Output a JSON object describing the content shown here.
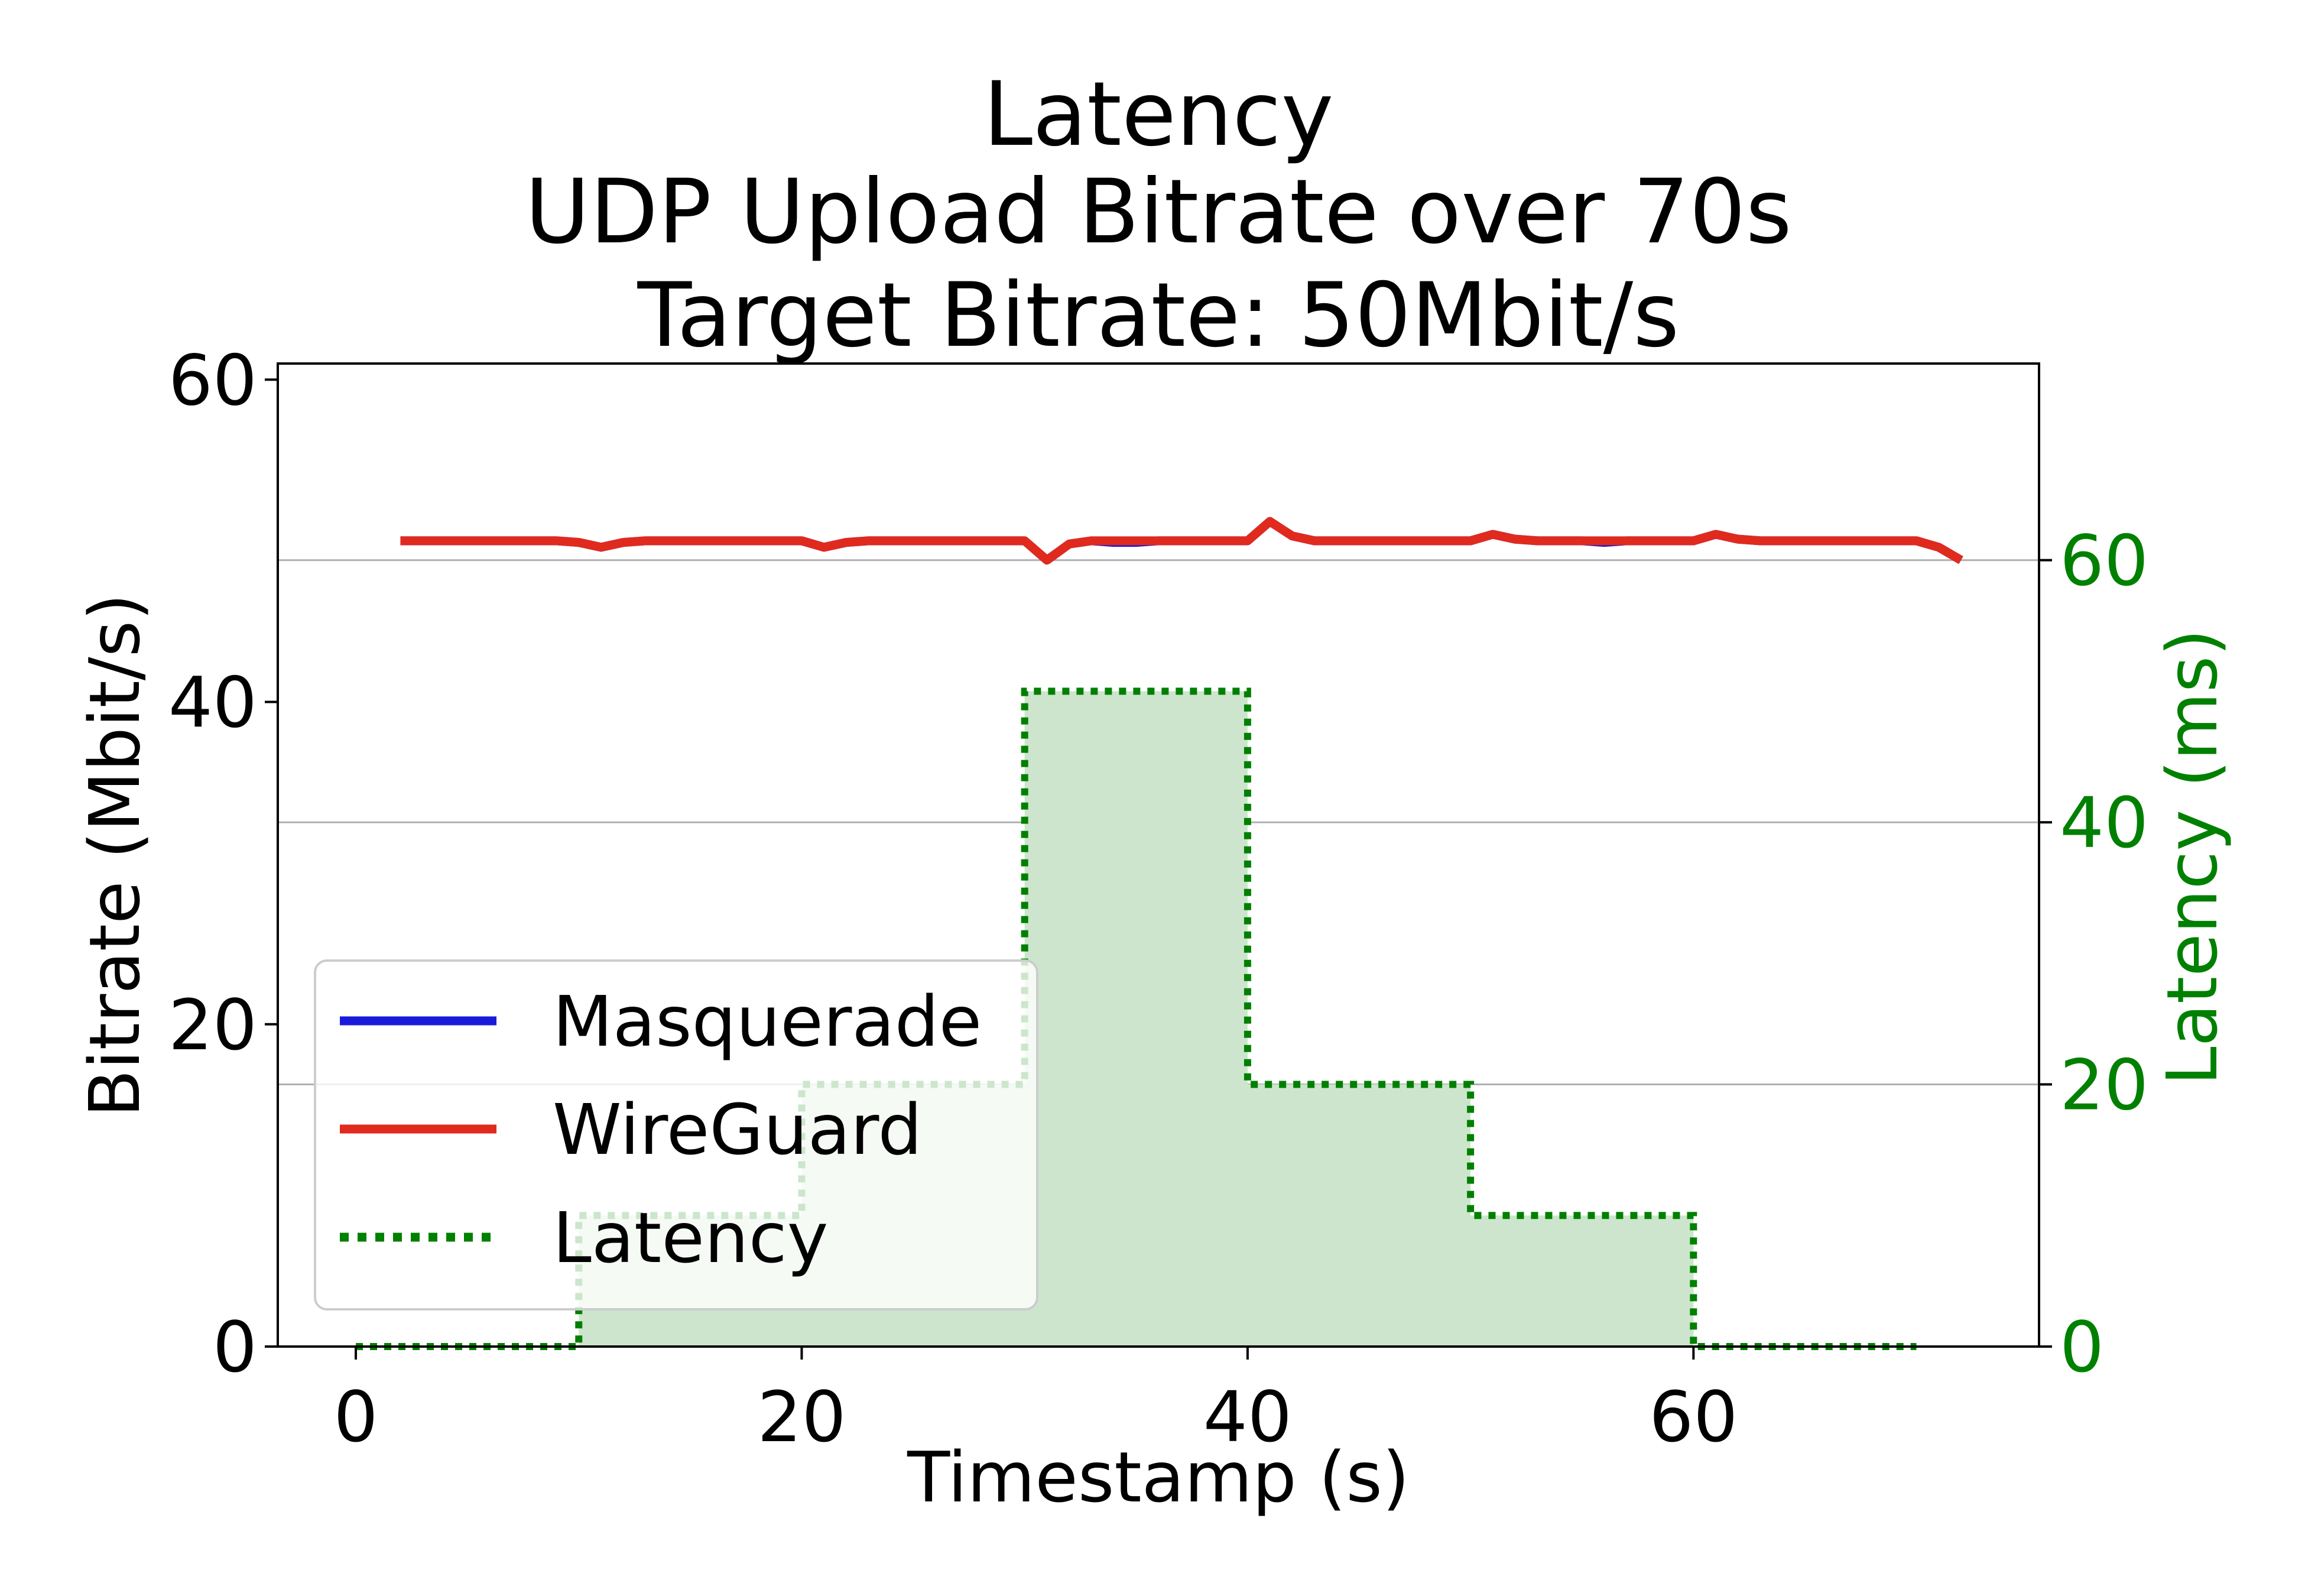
{
  "chart_data": {
    "type": "line",
    "title_lines": [
      "Latency",
      "UDP Upload Bitrate over 70s",
      "Target Bitrate: 50Mbit/s"
    ],
    "xlabel": "Timestamp (s)",
    "ylabel": "Bitrate (Mbit/s)",
    "ylabel_right": "Latency (ms)",
    "xlim": [
      -3.5,
      75.5
    ],
    "ylim": [
      0,
      61
    ],
    "ylim_right": [
      0,
      75
    ],
    "xticks": [
      0,
      20,
      40,
      60
    ],
    "yticks": [
      0,
      20,
      40,
      60
    ],
    "yticks_right": [
      0,
      20,
      40,
      60
    ],
    "grid": "horizontal lines at right-axis ticks",
    "legend_position": "lower-left",
    "series": [
      {
        "name": "Masquerade",
        "axis": "left",
        "color": "#1a1adb",
        "style": "solid",
        "x": [
          2,
          3,
          4,
          5,
          6,
          7,
          8,
          9,
          10,
          11,
          12,
          13,
          14,
          15,
          16,
          17,
          18,
          19,
          20,
          21,
          22,
          23,
          24,
          25,
          26,
          27,
          28,
          29,
          30,
          31,
          32,
          33,
          34,
          35,
          36,
          37,
          38,
          39,
          40,
          41,
          42,
          43,
          44,
          45,
          46,
          47,
          48,
          49,
          50,
          51,
          52,
          53,
          54,
          55,
          56,
          57,
          58,
          59,
          60,
          61,
          62,
          63,
          64,
          65,
          66,
          67,
          68,
          69,
          70,
          71,
          72
        ],
        "y": [
          50,
          50,
          50,
          50,
          50,
          50,
          50,
          50,
          49.9,
          49.6,
          49.9,
          50,
          50,
          50,
          50,
          50,
          50,
          50,
          50,
          49.6,
          49.9,
          50,
          50,
          50,
          50,
          50,
          50,
          50,
          50,
          48.8,
          49.8,
          50,
          49.9,
          49.9,
          50,
          50,
          50,
          50,
          50,
          51.2,
          50.3,
          50,
          50,
          50,
          50,
          50,
          50,
          50,
          50,
          50.4,
          50.1,
          50,
          50,
          50,
          49.9,
          50,
          50,
          50,
          50,
          50.4,
          50.1,
          50,
          50,
          50,
          50,
          50,
          50,
          50,
          50,
          49.6,
          48.8
        ]
      },
      {
        "name": "WireGuard",
        "axis": "left",
        "color": "#e02a1e",
        "style": "solid",
        "x": [
          2,
          3,
          4,
          5,
          6,
          7,
          8,
          9,
          10,
          11,
          12,
          13,
          14,
          15,
          16,
          17,
          18,
          19,
          20,
          21,
          22,
          23,
          24,
          25,
          26,
          27,
          28,
          29,
          30,
          31,
          32,
          33,
          34,
          35,
          36,
          37,
          38,
          39,
          40,
          41,
          42,
          43,
          44,
          45,
          46,
          47,
          48,
          49,
          50,
          51,
          52,
          53,
          54,
          55,
          56,
          57,
          58,
          59,
          60,
          61,
          62,
          63,
          64,
          65,
          66,
          67,
          68,
          69,
          70,
          71,
          72
        ],
        "y": [
          50,
          50,
          50,
          50,
          50,
          50,
          50,
          50,
          49.9,
          49.6,
          49.9,
          50,
          50,
          50,
          50,
          50,
          50,
          50,
          50,
          49.6,
          49.9,
          50,
          50,
          50,
          50,
          50,
          50,
          50,
          50,
          48.8,
          49.8,
          50,
          50,
          50,
          50,
          50,
          50,
          50,
          50,
          51.2,
          50.3,
          50,
          50,
          50,
          50,
          50,
          50,
          50,
          50,
          50.4,
          50.1,
          50,
          50,
          50,
          50,
          50,
          50,
          50,
          50,
          50.4,
          50.1,
          50,
          50,
          50,
          50,
          50,
          50,
          50,
          50,
          49.6,
          48.8
        ]
      },
      {
        "name": "Latency",
        "axis": "right",
        "color": "#008000",
        "style": "dotted-step-with-fill",
        "x": [
          0,
          10,
          20,
          30,
          40,
          50,
          60,
          70
        ],
        "y": [
          0,
          10,
          20,
          50,
          20,
          10,
          0,
          0
        ]
      }
    ]
  }
}
